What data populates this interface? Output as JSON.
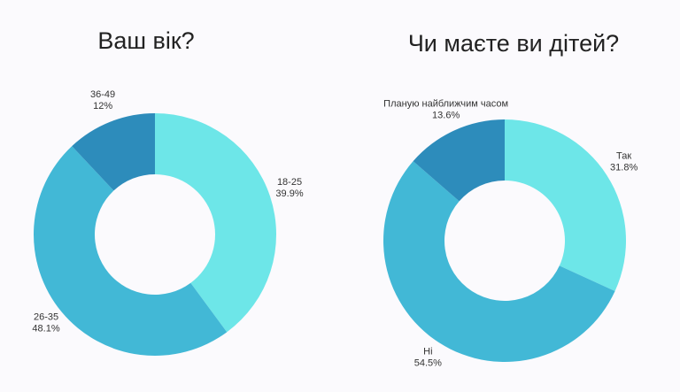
{
  "chart_data": [
    {
      "type": "pie",
      "title": "Ваш вік?",
      "categories": [
        "18-25",
        "26-35",
        "36-49"
      ],
      "values": [
        39.9,
        48.1,
        12
      ],
      "value_labels": [
        "39.9%",
        "48.1%",
        "12%"
      ],
      "colors": [
        "#6de6e8",
        "#42b8d6",
        "#2d8cbb"
      ],
      "donut": true
    },
    {
      "type": "pie",
      "title": "Чи маєте ви дітей?",
      "categories": [
        "Так",
        "Ні",
        "Планую найближчим часом"
      ],
      "values": [
        31.8,
        54.5,
        13.6
      ],
      "value_labels": [
        "31.8%",
        "54.5%",
        "13.6%"
      ],
      "colors": [
        "#6de6e8",
        "#42b8d6",
        "#2d8cbb"
      ],
      "donut": true
    }
  ]
}
